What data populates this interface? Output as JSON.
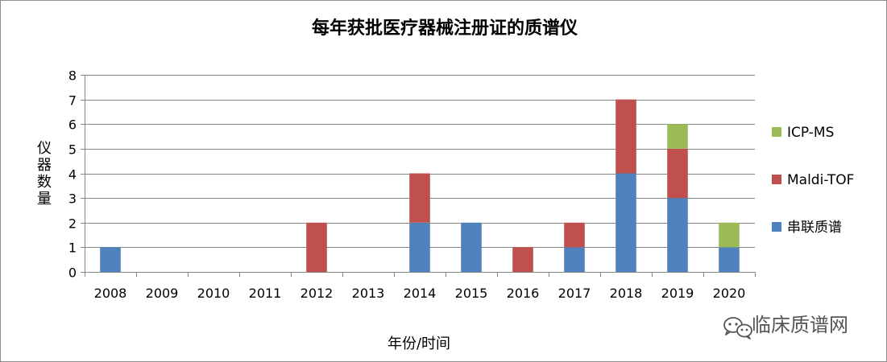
{
  "chart_data": {
    "type": "bar",
    "stacked": true,
    "title": "每年获批医疗器械注册证的质谱仪",
    "xlabel": "年份/时间",
    "ylabel": "仪器数量",
    "ylim": [
      0,
      8
    ],
    "yticks": [
      0,
      1,
      2,
      3,
      4,
      5,
      6,
      7,
      8
    ],
    "grid": true,
    "legend_position": "right",
    "categories": [
      "2008",
      "2009",
      "2010",
      "2011",
      "2012",
      "2013",
      "2014",
      "2015",
      "2016",
      "2017",
      "2018",
      "2019",
      "2020"
    ],
    "series": [
      {
        "name": "串联质谱",
        "color": "#4f81bd",
        "values": [
          1,
          0,
          0,
          0,
          0,
          0,
          2,
          2,
          0,
          1,
          4,
          3,
          1
        ]
      },
      {
        "name": "Maldi-TOF",
        "color": "#c0504d",
        "values": [
          0,
          0,
          0,
          0,
          2,
          0,
          2,
          0,
          1,
          1,
          3,
          2,
          0
        ]
      },
      {
        "name": "ICP-MS",
        "color": "#9bbb59",
        "values": [
          0,
          0,
          0,
          0,
          0,
          0,
          0,
          0,
          0,
          0,
          0,
          1,
          1
        ]
      }
    ]
  },
  "watermark": {
    "text": "临床质谱网",
    "icon": "wechat-icon"
  }
}
